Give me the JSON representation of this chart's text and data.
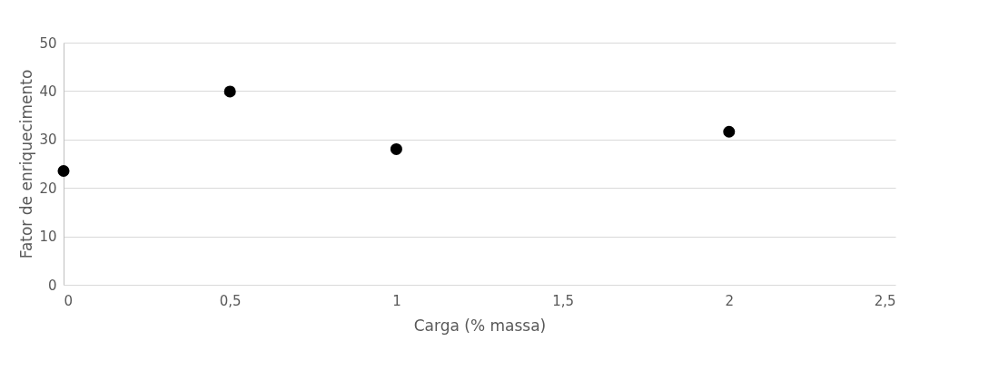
{
  "chart_data": {
    "type": "scatter",
    "xlabel": "Carga (% massa)",
    "ylabel": "Fator de enriquecimento",
    "x": [
      0,
      0.5,
      1,
      2
    ],
    "series": [
      {
        "color": "#000000",
        "values": [
          23.5,
          39.9,
          28,
          31.6
        ]
      }
    ],
    "xlim": [
      0,
      2.5
    ],
    "xticks": [
      0,
      {
        "value": 0.5,
        "label": "0,5"
      },
      1,
      {
        "value": 1.5,
        "label": "1,5"
      },
      2,
      {
        "value": 2.5,
        "label": "2,5"
      }
    ],
    "ylim": [
      0,
      50
    ],
    "yticks": [
      0,
      10,
      20,
      30,
      40,
      50
    ],
    "grid": "y",
    "marker": "circle"
  }
}
